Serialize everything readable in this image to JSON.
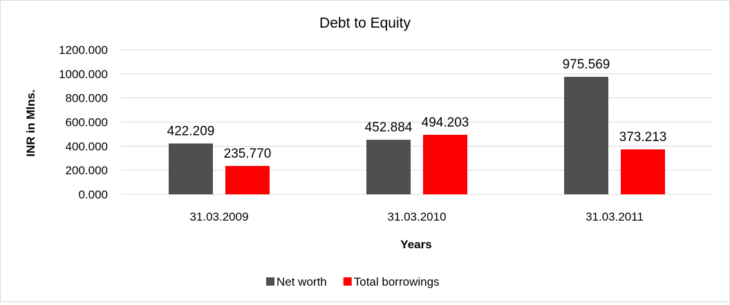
{
  "chart_data": {
    "type": "bar",
    "title": "Debt to Equity",
    "xlabel": "Years",
    "ylabel": "INR in Mlns.",
    "categories": [
      "31.03.2009",
      "31.03.2010",
      "31.03.2011"
    ],
    "series": [
      {
        "name": "Net worth",
        "values": [
          422.209,
          452.884,
          975.569
        ],
        "color": "#4f4f4f"
      },
      {
        "name": "Total borrowings",
        "values": [
          235.77,
          494.203,
          373.213
        ],
        "color": "#ff0000"
      }
    ],
    "data_labels": [
      [
        "422.209",
        "452.884",
        "975.569"
      ],
      [
        "235.770",
        "494.203",
        "373.213"
      ]
    ],
    "ylim": [
      0,
      1200
    ],
    "yticks": [
      "0.000",
      "200.000",
      "400.000",
      "600.000",
      "800.000",
      "1000.000",
      "1200.000"
    ],
    "grid": true,
    "legend_position": "bottom"
  }
}
